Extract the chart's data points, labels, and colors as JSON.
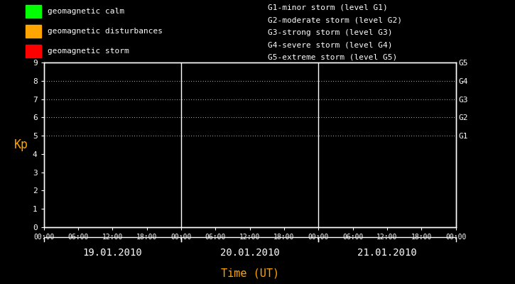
{
  "bg_color": "#000000",
  "plot_bg_color": "#000000",
  "text_color": "#ffffff",
  "orange_color": "#ffa500",
  "figsize": [
    7.25,
    4.0
  ],
  "dpi": 100,
  "ylim": [
    0,
    9
  ],
  "yticks": [
    0,
    1,
    2,
    3,
    4,
    5,
    6,
    7,
    8,
    9
  ],
  "days": [
    "19.01.2010",
    "20.01.2010",
    "21.01.2010"
  ],
  "time_labels": [
    "00:00",
    "06:00",
    "12:00",
    "18:00"
  ],
  "ylabel": "Kp",
  "xlabel": "Time (UT)",
  "legend_items": [
    {
      "label": "geomagnetic calm",
      "color": "#00ff00"
    },
    {
      "label": "geomagnetic disturbances",
      "color": "#ffa500"
    },
    {
      "label": "geomagnetic storm",
      "color": "#ff0000"
    }
  ],
  "g_labels": [
    "G1-minor storm (level G1)",
    "G2-moderate storm (level G2)",
    "G3-strong storm (level G3)",
    "G4-severe storm (level G4)",
    "G5-extreme storm (level G5)"
  ],
  "right_axis_labels": [
    {
      "text": "G5",
      "y": 9
    },
    {
      "text": "G4",
      "y": 8
    },
    {
      "text": "G3",
      "y": 7
    },
    {
      "text": "G2",
      "y": 6
    },
    {
      "text": "G1",
      "y": 5
    }
  ],
  "dotted_levels": [
    5,
    6,
    7,
    8,
    9
  ],
  "num_days": 3,
  "hours_per_day": 24
}
